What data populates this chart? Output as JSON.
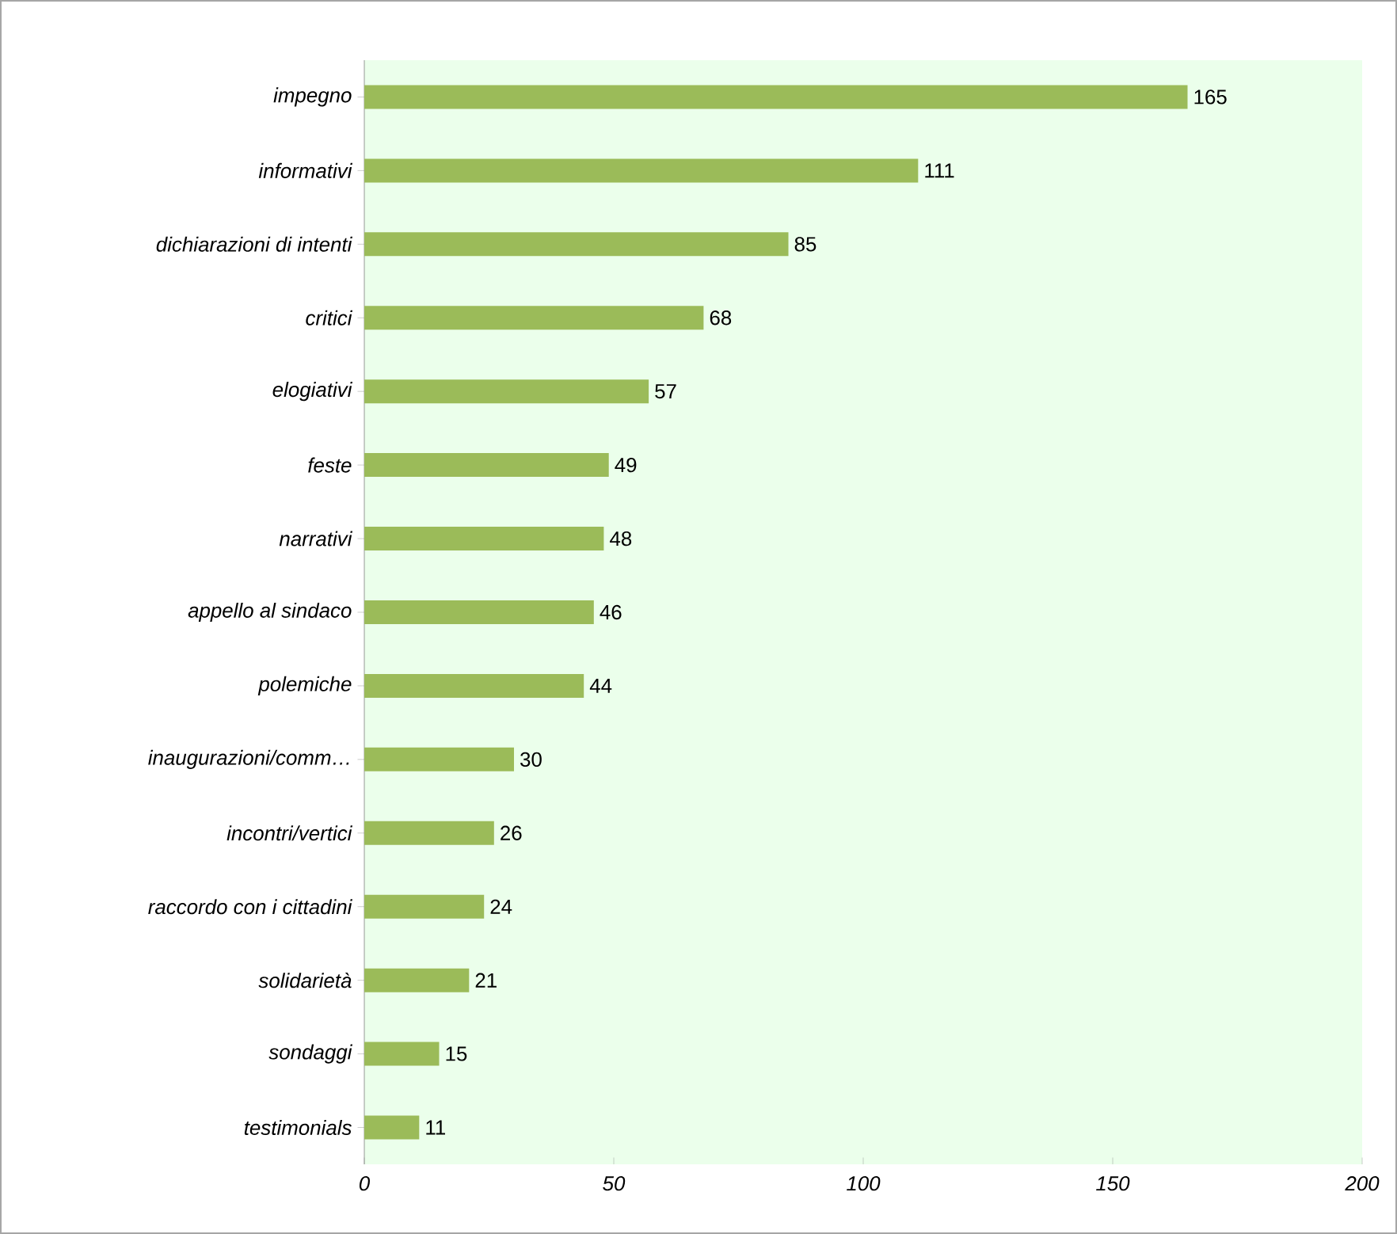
{
  "chart_data": {
    "type": "bar",
    "orientation": "horizontal",
    "categories": [
      "impegno",
      "informativi",
      "dichiarazioni di intenti",
      "critici",
      "elogiativi",
      "feste",
      "narrativi",
      "appello al sindaco",
      "polemiche",
      "inaugurazioni/comm…",
      "incontri/vertici",
      "raccordo con i cittadini",
      "solidarietà",
      "sondaggi",
      "testimonials"
    ],
    "values": [
      165,
      111,
      85,
      68,
      57,
      49,
      48,
      46,
      44,
      30,
      26,
      24,
      21,
      15,
      11
    ],
    "color": "#9bbb59",
    "xlim": [
      0,
      200
    ],
    "xticks": [
      0,
      50,
      100,
      150,
      200
    ],
    "data_labels": true
  }
}
